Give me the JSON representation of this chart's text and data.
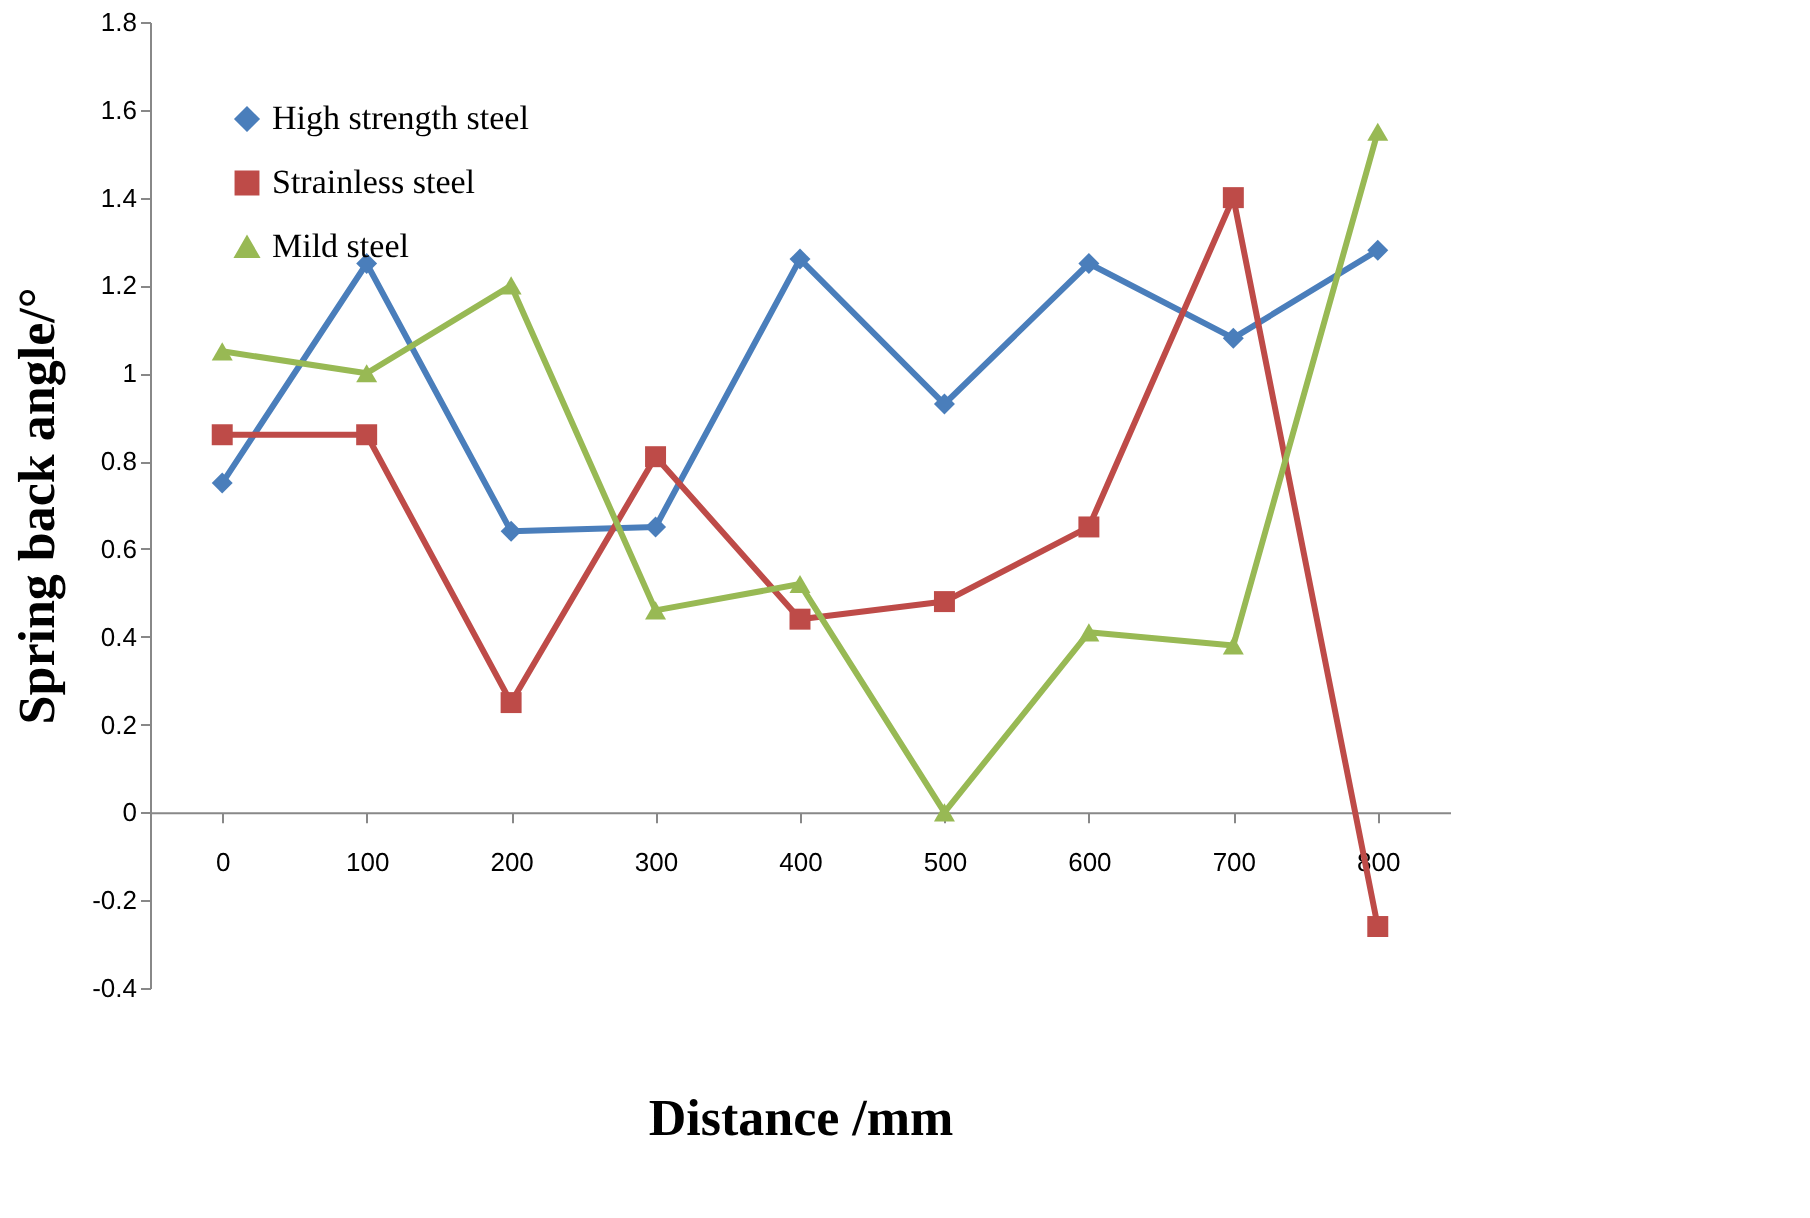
{
  "chart_data": {
    "type": "line",
    "xlabel": "Distance /mm",
    "ylabel": "Spring back angle/°",
    "categories": [
      "0",
      "100",
      "200",
      "300",
      "400",
      "500",
      "600",
      "700",
      "800"
    ],
    "series": [
      {
        "name": "High strength steel",
        "color": "#4a7ebb",
        "marker": "diamond",
        "values": [
          0.75,
          1.25,
          0.64,
          0.65,
          1.26,
          0.93,
          1.25,
          1.08,
          1.28
        ]
      },
      {
        "name": "Strainless steel",
        "color": "#be4b48",
        "marker": "square",
        "values": [
          0.86,
          0.86,
          0.25,
          0.81,
          0.44,
          0.48,
          0.65,
          1.4,
          -0.26
        ]
      },
      {
        "name": "Mild steel",
        "color": "#98b954",
        "marker": "triangle",
        "values": [
          1.05,
          1.0,
          1.2,
          0.46,
          0.52,
          0.0,
          0.41,
          0.38,
          1.55
        ]
      }
    ],
    "ylim": [
      -0.4,
      1.8
    ],
    "yticks": [
      -0.4,
      -0.2,
      0,
      0.2,
      0.4,
      0.6,
      0.8,
      1,
      1.2,
      1.4,
      1.6,
      1.8
    ],
    "grid": false,
    "legend": "top left",
    "line_style": "solid"
  }
}
